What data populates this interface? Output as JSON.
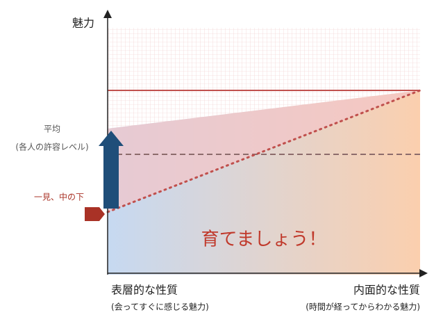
{
  "axes": {
    "y_label": "魅力"
  },
  "labels": {
    "average": "平均",
    "average_note": "(各人の許容レベル)",
    "first_impression": "一見、中の下",
    "message": "育てましょう！"
  },
  "x_ends": {
    "left": "表層的な性質",
    "left_note": "(会ってすぐに感じる魅力)",
    "right": "内面的な性質",
    "right_note": "(時間が経ってからわかる魅力)"
  }
}
